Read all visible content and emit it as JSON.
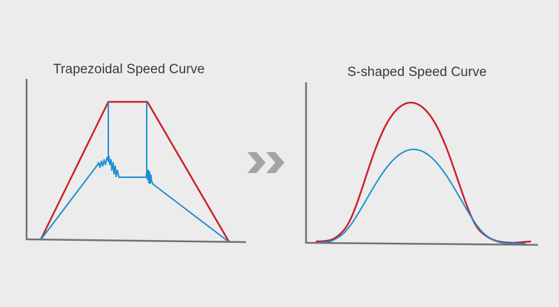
{
  "titles": {
    "left": "Trapezoidal Speed Curve",
    "right": "S-shaped Speed Curve"
  },
  "arrow_icon": "double-chevron-right-icon",
  "colors": {
    "background": "#ececec",
    "axis": "#707070",
    "red_curve": "#cc1f2c",
    "blue_curve": "#1a8fd0",
    "arrow": "#a3a3a3",
    "title_text": "#3a3a3a"
  }
}
